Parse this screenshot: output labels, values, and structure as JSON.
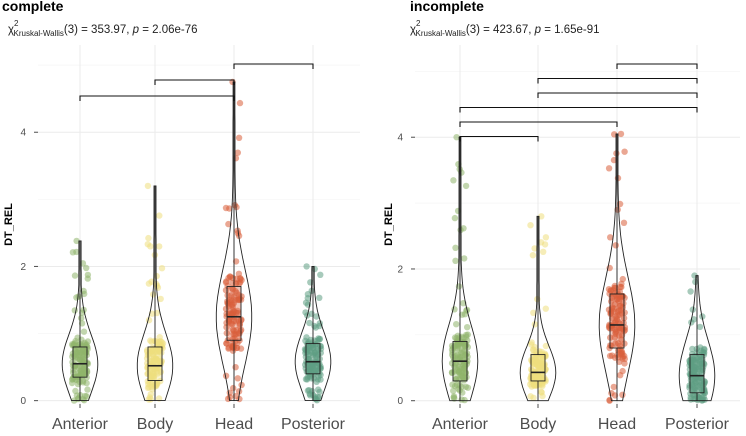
{
  "chart_data": [
    {
      "type": "violin",
      "title": "complete",
      "stat": {
        "chi": "χ",
        "sup": "2",
        "sub": "Kruskal-Wallis",
        "df": "(3)",
        "value": " = 353.97, ",
        "p_label": "p",
        "p_value": " = 2.06e-76"
      },
      "ylabel": "DT_REL",
      "ylim": [
        -0.05,
        5.3
      ],
      "yticks": [
        "0",
        "2",
        "4"
      ],
      "categories": [
        "Anterior",
        "Body",
        "Head",
        "Posterior"
      ],
      "colors": [
        "#8fb56b",
        "#efdf7e",
        "#d95f3b",
        "#5f9e84"
      ],
      "box": [
        {
          "q1": 0.35,
          "median": 0.55,
          "q3": 0.8
        },
        {
          "q1": 0.3,
          "median": 0.52,
          "q3": 0.8
        },
        {
          "q1": 0.9,
          "median": 1.25,
          "q3": 1.7
        },
        {
          "q1": 0.4,
          "median": 0.58,
          "q3": 0.85
        }
      ],
      "range": [
        {
          "min": 0.0,
          "max": 2.38
        },
        {
          "min": 0.0,
          "max": 3.2
        },
        {
          "min": 0.0,
          "max": 4.75
        },
        {
          "min": 0.0,
          "max": 2.0
        }
      ],
      "comparisons": [
        {
          "from": 0,
          "to": 2,
          "level": 0
        },
        {
          "from": 1,
          "to": 2,
          "level": 1
        },
        {
          "from": 2,
          "to": 3,
          "level": 2
        }
      ]
    },
    {
      "type": "violin",
      "title": "incomplete",
      "stat": {
        "chi": "χ",
        "sup": "2",
        "sub": "Kruskal-Wallis",
        "df": "(3)",
        "value": " = 423.67, ",
        "p_label": "p",
        "p_value": " = 1.65e-91"
      },
      "ylabel": "DT_REL",
      "ylim": [
        -0.05,
        5.4
      ],
      "yticks": [
        "0",
        "2",
        "4"
      ],
      "categories": [
        "Anterior",
        "Body",
        "Head",
        "Posterior"
      ],
      "colors": [
        "#8fb56b",
        "#efdf7e",
        "#d95f3b",
        "#5f9e84"
      ],
      "box": [
        {
          "q1": 0.3,
          "median": 0.6,
          "q3": 0.9
        },
        {
          "q1": 0.3,
          "median": 0.43,
          "q3": 0.7
        },
        {
          "q1": 0.8,
          "median": 1.15,
          "q3": 1.62
        },
        {
          "q1": 0.12,
          "median": 0.38,
          "q3": 0.7
        }
      ],
      "range": [
        {
          "min": 0.0,
          "max": 4.0
        },
        {
          "min": 0.0,
          "max": 2.8
        },
        {
          "min": 0.0,
          "max": 4.05
        },
        {
          "min": 0.0,
          "max": 1.9
        }
      ],
      "comparisons": [
        {
          "from": 0,
          "to": 1,
          "level": 0
        },
        {
          "from": 0,
          "to": 2,
          "level": 1
        },
        {
          "from": 0,
          "to": 3,
          "level": 2
        },
        {
          "from": 1,
          "to": 3,
          "level": 3
        },
        {
          "from": 1,
          "to": 3,
          "level": 4
        },
        {
          "from": 2,
          "to": 3,
          "level": 5
        }
      ]
    }
  ]
}
